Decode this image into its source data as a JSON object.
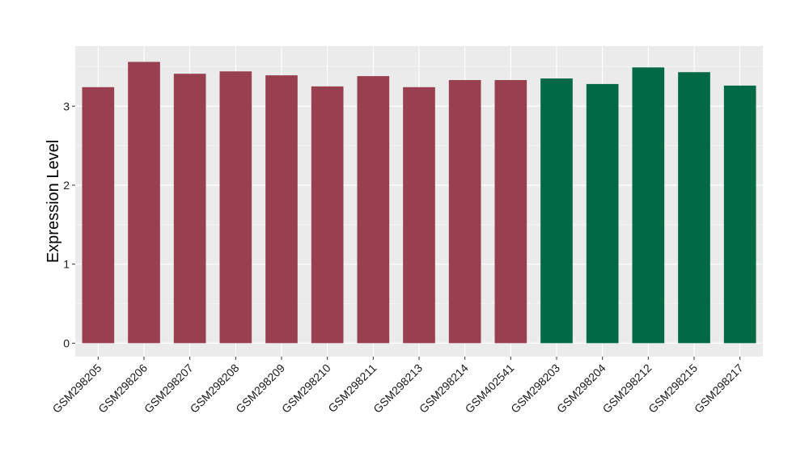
{
  "chart_data": {
    "type": "bar",
    "title": "",
    "xlabel": "",
    "ylabel": "Expression Level",
    "ylim": [
      -0.17,
      3.76
    ],
    "yticks": [
      0,
      1,
      2,
      3
    ],
    "grid": true,
    "categories": [
      "GSM298205",
      "GSM298206",
      "GSM298207",
      "GSM298208",
      "GSM298209",
      "GSM298210",
      "GSM298211",
      "GSM298213",
      "GSM298214",
      "GSM402541",
      "GSM298203",
      "GSM298204",
      "GSM298212",
      "GSM298215",
      "GSM298217"
    ],
    "values": [
      3.24,
      3.56,
      3.41,
      3.44,
      3.39,
      3.25,
      3.38,
      3.24,
      3.33,
      3.33,
      3.35,
      3.28,
      3.49,
      3.43,
      3.26
    ],
    "groups": [
      "group1",
      "group1",
      "group1",
      "group1",
      "group1",
      "group1",
      "group1",
      "group1",
      "group1",
      "group1",
      "group2",
      "group2",
      "group2",
      "group2",
      "group2"
    ],
    "colors": {
      "group1": "#98404f",
      "group2": "#016945",
      "panel": "#ebebeb",
      "grid_major": "#ffffff",
      "grid_minor": "#f5f5f5"
    }
  }
}
